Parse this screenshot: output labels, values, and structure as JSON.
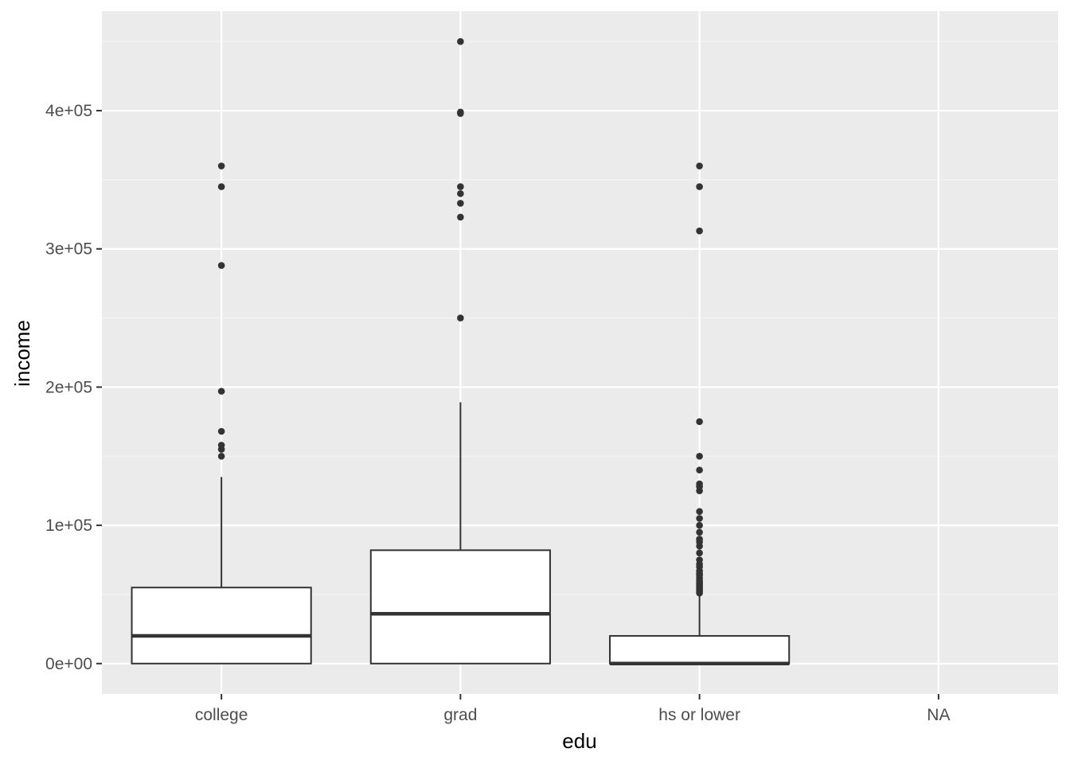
{
  "chart_data": {
    "type": "boxplot",
    "xlabel": "edu",
    "ylabel": "income",
    "categories": [
      "college",
      "grad",
      "hs or lower",
      "NA"
    ],
    "ylim": [
      -22000,
      472000
    ],
    "yticks": [
      0,
      100000,
      200000,
      300000,
      400000
    ],
    "ytick_labels": [
      "0e+00",
      "1e+05",
      "2e+05",
      "3e+05",
      "4e+05"
    ],
    "boxes": [
      {
        "category": "college",
        "whisker_low": 0,
        "q1": 0,
        "median": 20000,
        "q3": 55000,
        "whisker_high": 135000,
        "outliers": [
          150000,
          155000,
          158000,
          168000,
          197000,
          288000,
          345000,
          360000
        ]
      },
      {
        "category": "grad",
        "whisker_low": 0,
        "q1": 0,
        "median": 36000,
        "q3": 82000,
        "whisker_high": 189000,
        "outliers": [
          250000,
          323000,
          333000,
          340000,
          345000,
          398000,
          399000,
          450000
        ]
      },
      {
        "category": "hs or lower",
        "whisker_low": 0,
        "q1": 0,
        "median": 0,
        "q3": 20000,
        "whisker_high": 49000,
        "outliers": [
          51000,
          52000,
          53000,
          54000,
          55000,
          56000,
          57000,
          58000,
          59000,
          60000,
          62000,
          64000,
          65000,
          67000,
          70000,
          72000,
          75000,
          80000,
          85000,
          88000,
          90000,
          95000,
          100000,
          105000,
          110000,
          125000,
          128000,
          130000,
          140000,
          150000,
          175000,
          313000,
          345000,
          360000
        ]
      },
      {
        "category": "NA",
        "empty": true
      }
    ],
    "grid": true,
    "legend": "none"
  },
  "colors": {
    "panel_background": "#ebebeb",
    "grid_major": "#ffffff",
    "grid_minor": "#f5f5f5",
    "box_fill": "#ffffff",
    "box_stroke": "#333333",
    "outlier": "#333333",
    "tick": "#333333"
  }
}
